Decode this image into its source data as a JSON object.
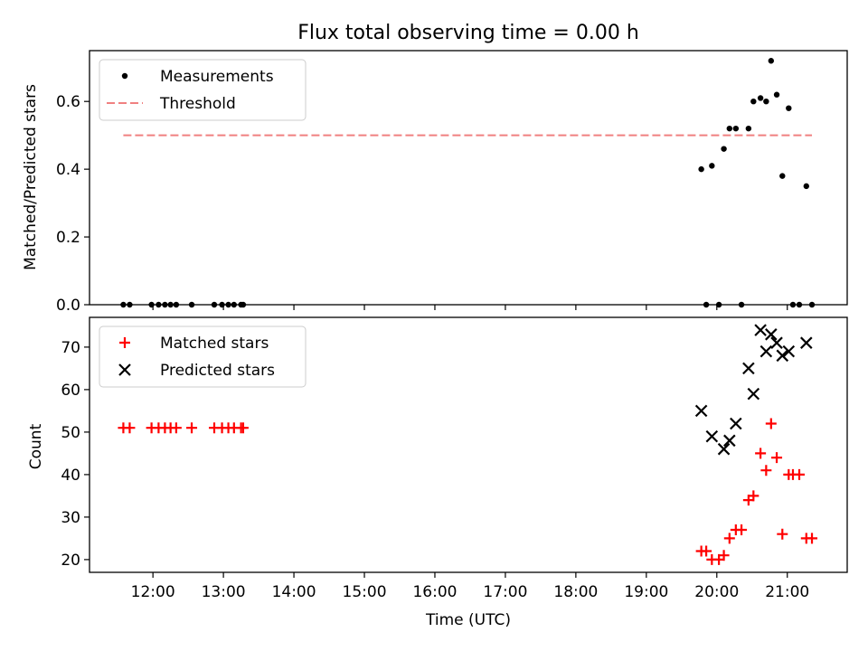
{
  "chart_data": [
    {
      "type": "scatter",
      "title": "Flux total observing time = 0.00 h",
      "xlabel": "",
      "ylabel": "Matched/Predicted stars",
      "xlim": [
        11.1,
        21.85
      ],
      "ylim": [
        0.0,
        0.75
      ],
      "yticks": [
        0.0,
        0.2,
        0.4,
        0.6
      ],
      "ytick_labels": [
        "0.0",
        "0.2",
        "0.4",
        "0.6"
      ],
      "legend": "top-left",
      "series": [
        {
          "name": "Measurements",
          "kind": "scatter",
          "color": "#000000",
          "marker": "dot",
          "x": [
            11.58,
            11.67,
            11.98,
            12.08,
            12.17,
            12.25,
            12.33,
            12.55,
            12.87,
            12.98,
            13.07,
            13.15,
            13.25,
            13.28,
            19.78,
            19.85,
            19.93,
            20.03,
            20.1,
            20.18,
            20.27,
            20.35,
            20.45,
            20.52,
            20.62,
            20.7,
            20.77,
            20.85,
            20.93,
            21.02,
            21.08,
            21.17,
            21.27,
            21.35
          ],
          "y": [
            0,
            0,
            0,
            0,
            0,
            0,
            0,
            0,
            0,
            0,
            0,
            0,
            0,
            0,
            0.4,
            0,
            0.41,
            0,
            0.46,
            0.52,
            0.52,
            0,
            0.52,
            0.6,
            0.61,
            0.6,
            0.72,
            0.62,
            0.38,
            0.58,
            0,
            0,
            0.35,
            0
          ]
        },
        {
          "name": "Threshold",
          "kind": "line",
          "color": "#f08080",
          "dash": "dashed",
          "x": [
            11.58,
            21.35
          ],
          "y": [
            0.5,
            0.5
          ]
        }
      ]
    },
    {
      "type": "scatter",
      "title": "",
      "xlabel": "Time (UTC)",
      "ylabel": "Count",
      "xlim": [
        11.1,
        21.85
      ],
      "ylim": [
        17,
        77
      ],
      "xticks": [
        12,
        13,
        14,
        15,
        16,
        17,
        18,
        19,
        20,
        21
      ],
      "xtick_labels": [
        "12:00",
        "13:00",
        "14:00",
        "15:00",
        "16:00",
        "17:00",
        "18:00",
        "19:00",
        "20:00",
        "21:00"
      ],
      "yticks": [
        20,
        30,
        40,
        50,
        60,
        70
      ],
      "ytick_labels": [
        "20",
        "30",
        "40",
        "50",
        "60",
        "70"
      ],
      "legend": "top-left",
      "series": [
        {
          "name": "Matched stars",
          "kind": "scatter",
          "color": "#ff0000",
          "marker": "plus",
          "x": [
            11.58,
            11.67,
            11.98,
            12.08,
            12.17,
            12.25,
            12.33,
            12.55,
            12.87,
            12.98,
            13.07,
            13.15,
            13.25,
            13.28,
            19.78,
            19.85,
            19.93,
            20.03,
            20.1,
            20.18,
            20.27,
            20.35,
            20.45,
            20.52,
            20.62,
            20.7,
            20.77,
            20.85,
            20.93,
            21.02,
            21.08,
            21.17,
            21.27,
            21.35
          ],
          "y": [
            51,
            51,
            51,
            51,
            51,
            51,
            51,
            51,
            51,
            51,
            51,
            51,
            51,
            51,
            22,
            22,
            20,
            20,
            21,
            25,
            27,
            27,
            34,
            35,
            45,
            41,
            52,
            44,
            26,
            40,
            40,
            40,
            25,
            25
          ]
        },
        {
          "name": "Predicted stars",
          "kind": "scatter",
          "color": "#000000",
          "marker": "x",
          "x": [
            19.78,
            19.93,
            20.1,
            20.18,
            20.27,
            20.45,
            20.52,
            20.62,
            20.7,
            20.77,
            20.85,
            20.93,
            21.02,
            21.27
          ],
          "y": [
            55,
            49,
            46,
            48,
            52,
            65,
            59,
            74,
            69,
            73,
            71,
            68,
            69,
            71
          ]
        }
      ]
    }
  ]
}
